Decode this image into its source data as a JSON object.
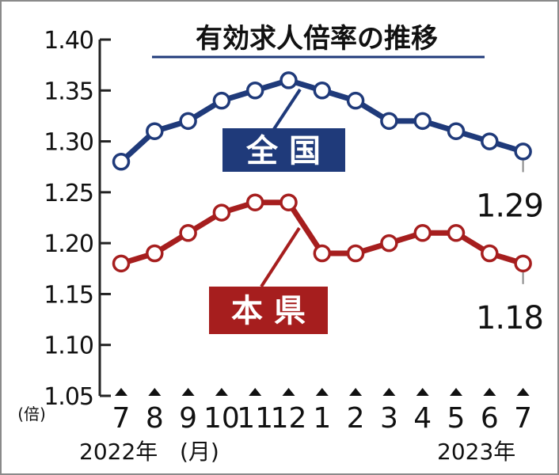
{
  "chart_data": {
    "type": "line",
    "title": "有効求人倍率の推移",
    "y_unit": "(倍)",
    "x_unit": "(月)",
    "year_start": "2022年",
    "year_end": "2023年",
    "ylim": [
      1.05,
      1.4
    ],
    "y_ticks": [
      "1.40",
      "1.35",
      "1.30",
      "1.25",
      "1.20",
      "1.15",
      "1.10",
      "1.05"
    ],
    "categories": [
      "7",
      "8",
      "9",
      "10",
      "11",
      "12",
      "1",
      "2",
      "3",
      "4",
      "5",
      "6",
      "7"
    ],
    "series": [
      {
        "name": "全 国",
        "color": "#1f3a7a",
        "values": [
          1.28,
          1.31,
          1.32,
          1.34,
          1.35,
          1.36,
          1.35,
          1.34,
          1.32,
          1.32,
          1.31,
          1.3,
          1.29
        ],
        "end_label": "1.29"
      },
      {
        "name": "本 県",
        "color": "#a61e1e",
        "values": [
          1.18,
          1.19,
          1.21,
          1.23,
          1.24,
          1.24,
          1.19,
          1.19,
          1.2,
          1.21,
          1.21,
          1.19,
          1.18
        ],
        "end_label": "1.18"
      }
    ]
  }
}
